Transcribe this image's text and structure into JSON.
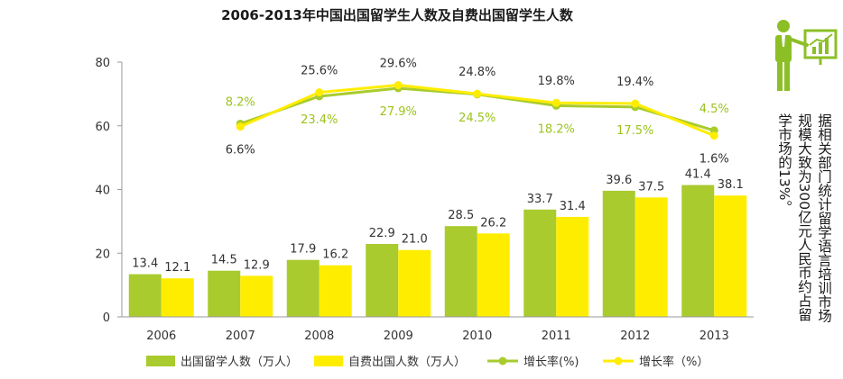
{
  "colors": {
    "green": "#a9cb2e",
    "yellow": "#ffed00",
    "green_label": "#9bc31c",
    "axis": "#9a9a9a",
    "icon_green": "#8cbf26"
  },
  "side_note": "据相关部门统计留学语言培训市场规模大致为300亿元人民币约占留学市场的13%。",
  "chart_data": {
    "type": "bar",
    "title": "2006-2013年中国出国留学生人数及自费出国留学生人数",
    "categories": [
      "2006",
      "2007",
      "2008",
      "2009",
      "2010",
      "2011",
      "2012",
      "2013"
    ],
    "ylim": [
      0,
      80
    ],
    "yticks": [
      0,
      20,
      40,
      60,
      80
    ],
    "series": [
      {
        "name": "出国留学人数（万人）",
        "kind": "bar",
        "color": "#a9cb2e",
        "values": [
          13.4,
          14.5,
          17.9,
          22.9,
          28.5,
          33.7,
          39.6,
          41.4
        ],
        "labels": [
          "13.4",
          "14.5",
          "17.9",
          "22.9",
          "28.5",
          "33.7",
          "39.6",
          "41.4"
        ]
      },
      {
        "name": "自费出国人数（万人）",
        "kind": "bar",
        "color": "#ffed00",
        "values": [
          12.1,
          12.9,
          16.2,
          21.0,
          26.2,
          31.4,
          37.5,
          38.1
        ],
        "labels": [
          "12.1",
          "12.9",
          "16.2",
          "21.0",
          "26.2",
          "31.4",
          "37.5",
          "38.1"
        ]
      },
      {
        "name": "增长率(%)",
        "kind": "line",
        "color": "#a9cb2e",
        "x": [
          "2007",
          "2008",
          "2009",
          "2010",
          "2011",
          "2012",
          "2013"
        ],
        "rates": [
          8.2,
          23.4,
          27.9,
          24.5,
          18.2,
          17.5,
          4.5
        ],
        "labels": [
          "8.2%",
          "23.4%",
          "27.9%",
          "24.5%",
          "18.2%",
          "17.5%",
          "4.5%"
        ]
      },
      {
        "name": "增长率（%）",
        "kind": "line",
        "color": "#ffed00",
        "x": [
          "2007",
          "2008",
          "2009",
          "2010",
          "2011",
          "2012",
          "2013"
        ],
        "rates": [
          6.6,
          25.6,
          29.6,
          24.8,
          19.8,
          19.4,
          1.6
        ],
        "labels": [
          "6.6%",
          "25.6%",
          "29.6%",
          "24.8%",
          "19.8%",
          "19.4%",
          "1.6%"
        ]
      }
    ],
    "legend_position": "bottom",
    "grid": false
  }
}
